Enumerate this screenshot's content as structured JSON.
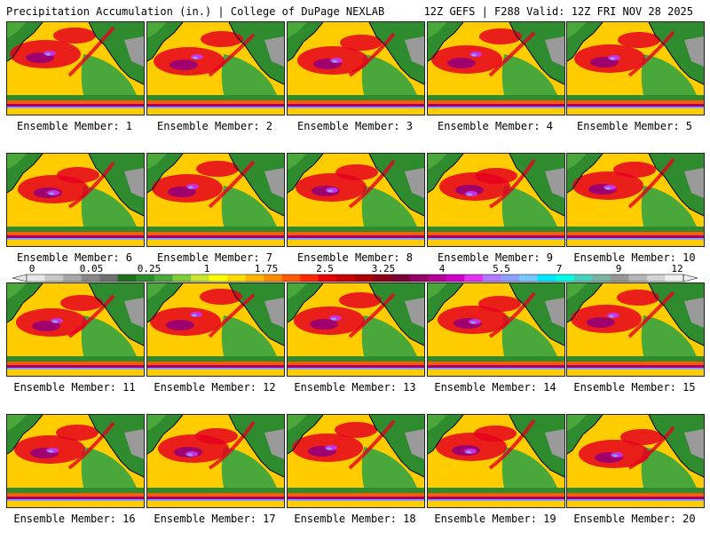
{
  "header": {
    "title": "Precipitation Accumulation (in.) | College of DuPage NEXLAB",
    "run_info": "12Z GEFS | F288 Valid: 12Z FRI NOV 28 2025"
  },
  "members": [
    {
      "label": "Ensemble Member: 1"
    },
    {
      "label": "Ensemble Member: 2"
    },
    {
      "label": "Ensemble Member: 3"
    },
    {
      "label": "Ensemble Member: 4"
    },
    {
      "label": "Ensemble Member: 5"
    },
    {
      "label": "Ensemble Member: 6"
    },
    {
      "label": "Ensemble Member: 7"
    },
    {
      "label": "Ensemble Member: 8"
    },
    {
      "label": "Ensemble Member: 9"
    },
    {
      "label": "Ensemble Member: 10"
    },
    {
      "label": "Ensemble Member: 11"
    },
    {
      "label": "Ensemble Member: 12"
    },
    {
      "label": "Ensemble Member: 13"
    },
    {
      "label": "Ensemble Member: 14"
    },
    {
      "label": "Ensemble Member: 15"
    },
    {
      "label": "Ensemble Member: 16"
    },
    {
      "label": "Ensemble Member: 17"
    },
    {
      "label": "Ensemble Member: 18"
    },
    {
      "label": "Ensemble Member: 19"
    },
    {
      "label": "Ensemble Member: 20"
    }
  ],
  "colorbar": {
    "tick_labels": [
      "0",
      "0.05",
      "0.25",
      "1",
      "1.75",
      "2.5",
      "3.25",
      "4",
      "5.5",
      "7",
      "9",
      "12"
    ],
    "colors": [
      "#e6e6e6",
      "#c8c8c8",
      "#a8a8a8",
      "#888888",
      "#6e6e6e",
      "#1e6e1e",
      "#2e8b2e",
      "#4aa83a",
      "#7fcc3a",
      "#c8e62e",
      "#ffff00",
      "#ffdc00",
      "#ffb400",
      "#ff8c00",
      "#ff5a00",
      "#ff2800",
      "#e60000",
      "#c80000",
      "#aa0000",
      "#8c0014",
      "#780032",
      "#960064",
      "#b40096",
      "#d200c8",
      "#e632f0",
      "#b478ff",
      "#8ca0ff",
      "#78c8ff",
      "#00e6ff",
      "#00ffe6",
      "#46d2be",
      "#78b4a0",
      "#969696",
      "#b4b4b4",
      "#d2d2d2",
      "#f0f0f0"
    ]
  },
  "map_palette": {
    "ocean": "#ffcc00",
    "land": "#2e8b2e",
    "land_light": "#4aa83a",
    "dry_land": "#9a9a9a",
    "heavy": "#e6001e",
    "very_heavy": "#a0006e",
    "extreme": "#c832e6",
    "peak": "#8ca0ff",
    "band": "#ff5a00",
    "coast": "#000000"
  }
}
